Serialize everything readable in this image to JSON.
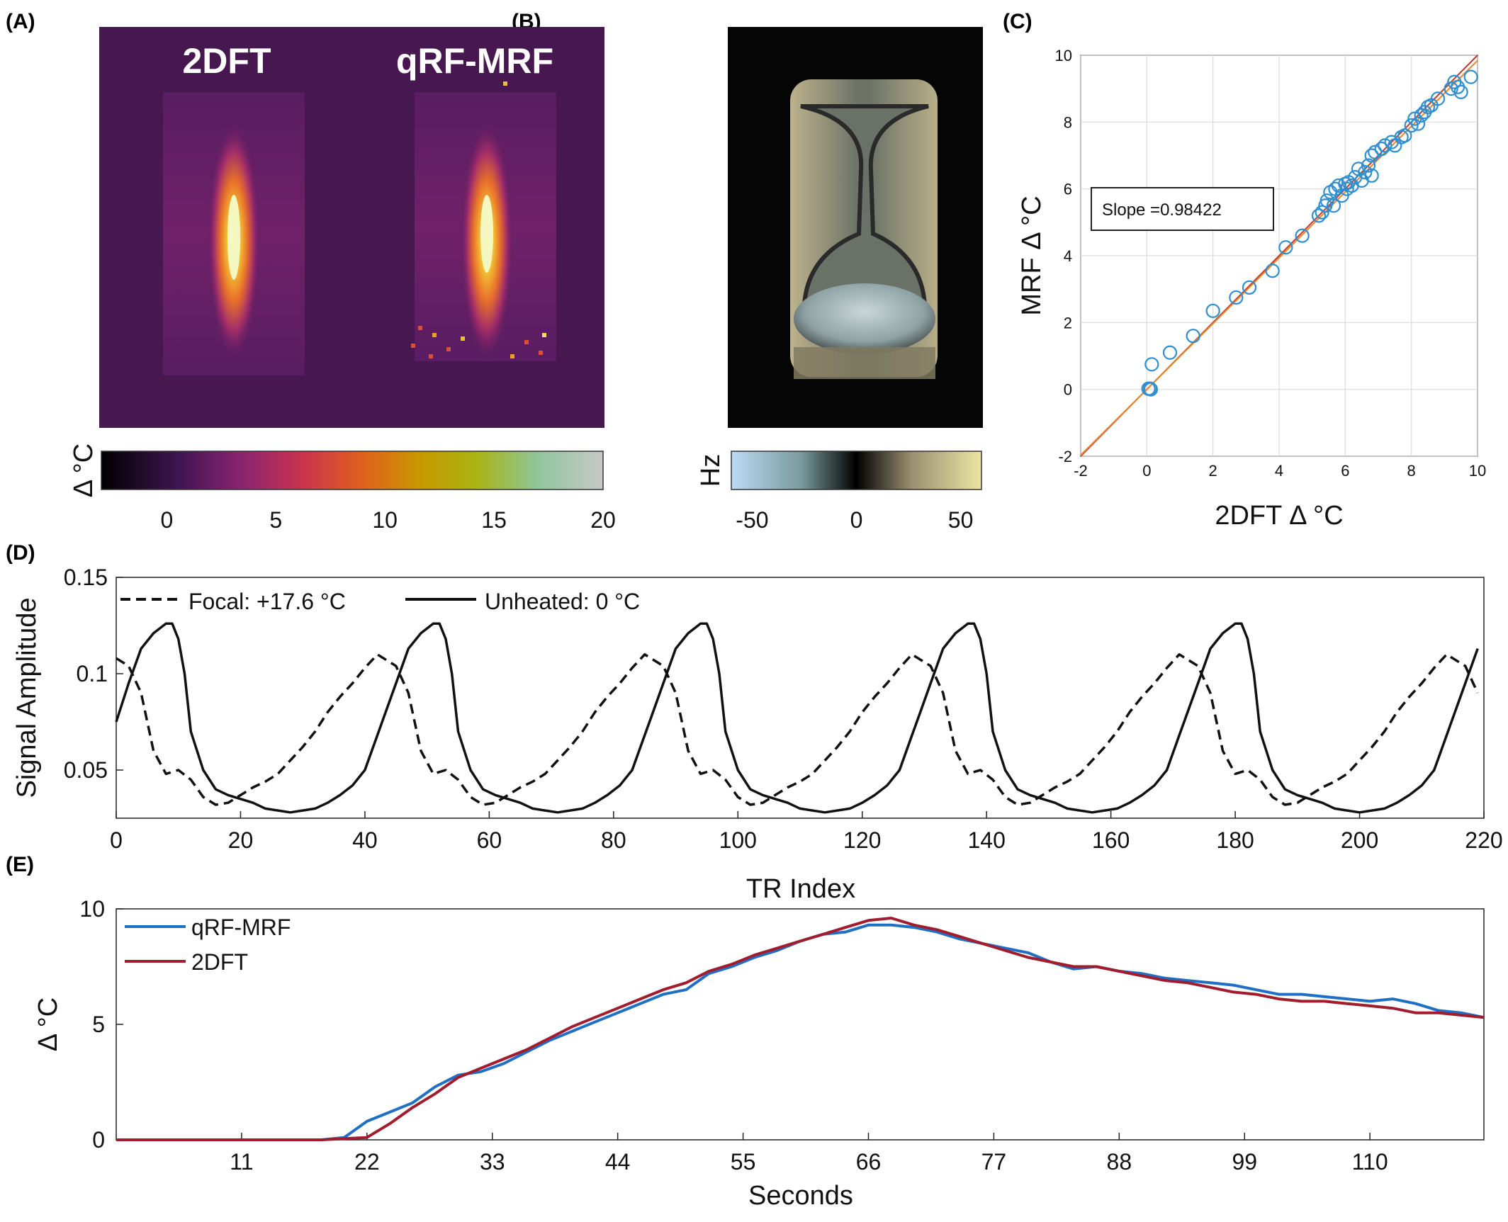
{
  "panels": {
    "A": {
      "label": "(A)",
      "image_titles": [
        "2DFT",
        "qRF-MRF"
      ],
      "colorbar": {
        "label": "Δ °C",
        "ticks": [
          "0",
          "5",
          "10",
          "15",
          "20"
        ],
        "range": [
          -3,
          20
        ]
      }
    },
    "B": {
      "label": "(B)",
      "colorbar": {
        "label": "Hz",
        "ticks": [
          "-50",
          "0",
          "50"
        ],
        "range": [
          -60,
          60
        ]
      }
    },
    "C": {
      "label": "(C)"
    },
    "D": {
      "label": "(D)"
    },
    "E": {
      "label": "(E)"
    }
  },
  "colors": {
    "scatter_marker": "#2f8fd0",
    "fit_line_orange": "#e8862a",
    "fit_line_red": "#c0392b",
    "qrf_line": "#1f6fc5",
    "twodft_line": "#a11d2e",
    "map_background": "#46184f"
  },
  "chart_data": [
    {
      "id": "C",
      "type": "scatter",
      "xlabel": "2DFT Δ °C",
      "ylabel": "MRF Δ °C",
      "xlim": [
        -2,
        10
      ],
      "ylim": [
        -2,
        10
      ],
      "xticks": [
        "-2",
        "0",
        "2",
        "4",
        "6",
        "8",
        "10"
      ],
      "yticks": [
        "-2",
        "0",
        "2",
        "4",
        "6",
        "8",
        "10"
      ],
      "grid": true,
      "annotation": "Slope =0.98422",
      "fit_slope": 0.98422,
      "points": [
        [
          0.05,
          0.02
        ],
        [
          0.1,
          0.02
        ],
        [
          0.12,
          0.0
        ],
        [
          0.15,
          0.75
        ],
        [
          0.7,
          1.1
        ],
        [
          1.4,
          1.6
        ],
        [
          2.0,
          2.35
        ],
        [
          2.7,
          2.75
        ],
        [
          3.1,
          3.05
        ],
        [
          3.8,
          3.55
        ],
        [
          4.2,
          4.25
        ],
        [
          4.7,
          4.6
        ],
        [
          5.2,
          5.2
        ],
        [
          5.3,
          5.3
        ],
        [
          5.4,
          5.5
        ],
        [
          5.45,
          5.65
        ],
        [
          5.55,
          5.9
        ],
        [
          5.65,
          5.5
        ],
        [
          5.7,
          6.0
        ],
        [
          5.8,
          6.1
        ],
        [
          5.9,
          5.8
        ],
        [
          6.0,
          6.15
        ],
        [
          6.05,
          6.0
        ],
        [
          6.1,
          6.2
        ],
        [
          6.2,
          6.1
        ],
        [
          6.3,
          6.35
        ],
        [
          6.4,
          6.6
        ],
        [
          6.5,
          6.25
        ],
        [
          6.6,
          6.5
        ],
        [
          6.7,
          6.7
        ],
        [
          6.8,
          6.4
        ],
        [
          6.8,
          7.0
        ],
        [
          6.9,
          7.1
        ],
        [
          7.1,
          7.2
        ],
        [
          7.2,
          7.3
        ],
        [
          7.4,
          7.4
        ],
        [
          7.5,
          7.3
        ],
        [
          7.7,
          7.55
        ],
        [
          7.8,
          7.6
        ],
        [
          8.0,
          7.9
        ],
        [
          8.1,
          8.1
        ],
        [
          8.2,
          7.95
        ],
        [
          8.3,
          8.2
        ],
        [
          8.4,
          8.3
        ],
        [
          8.5,
          8.45
        ],
        [
          8.6,
          8.5
        ],
        [
          8.8,
          8.7
        ],
        [
          9.2,
          9.0
        ],
        [
          9.3,
          9.2
        ],
        [
          9.4,
          9.05
        ],
        [
          9.5,
          8.9
        ],
        [
          9.8,
          9.35
        ]
      ]
    },
    {
      "id": "D",
      "type": "line",
      "xlabel": "TR Index",
      "ylabel": "Signal Amplitude",
      "xlim": [
        0,
        220
      ],
      "ylim": [
        0.025,
        0.15
      ],
      "xticks": [
        "0",
        "20",
        "40",
        "60",
        "80",
        "100",
        "120",
        "140",
        "160",
        "180",
        "200",
        "220"
      ],
      "yticks": [
        "0.05",
        "0.1",
        "0.15"
      ],
      "legend_position": "top-left",
      "series": [
        {
          "name": "Focal: +17.6 °C",
          "style": "dashed",
          "period": 43,
          "cycle_x": [
            0,
            2,
            4,
            6,
            8,
            10,
            12,
            14,
            16,
            18,
            20,
            22,
            24,
            26,
            28,
            30,
            32,
            34,
            36,
            38,
            40,
            42,
            43
          ],
          "cycle_y": [
            0.108,
            0.104,
            0.09,
            0.06,
            0.048,
            0.05,
            0.045,
            0.036,
            0.032,
            0.033,
            0.037,
            0.041,
            0.044,
            0.048,
            0.055,
            0.062,
            0.07,
            0.08,
            0.088,
            0.095,
            0.103,
            0.11,
            0.108
          ]
        },
        {
          "name": "Unheated: 0 °C",
          "style": "solid",
          "period": 43,
          "cycle_x": [
            0,
            2,
            4,
            6,
            8,
            9,
            10,
            11,
            12,
            14,
            16,
            18,
            20,
            22,
            24,
            26,
            28,
            30,
            32,
            34,
            36,
            38,
            40,
            42,
            43
          ],
          "cycle_y": [
            0.075,
            0.095,
            0.113,
            0.121,
            0.126,
            0.126,
            0.118,
            0.1,
            0.07,
            0.05,
            0.04,
            0.037,
            0.035,
            0.033,
            0.03,
            0.029,
            0.028,
            0.029,
            0.03,
            0.033,
            0.037,
            0.042,
            0.05,
            0.068,
            0.077
          ]
        }
      ]
    },
    {
      "id": "E",
      "type": "line",
      "xlabel": "Seconds",
      "ylabel": "Δ °C",
      "xlim": [
        0,
        120
      ],
      "ylim": [
        0,
        10
      ],
      "xticks": [
        "11",
        "22",
        "33",
        "44",
        "55",
        "66",
        "77",
        "88",
        "99",
        "110"
      ],
      "yticks": [
        "0",
        "5",
        "10"
      ],
      "legend_position": "top-left",
      "series": [
        {
          "name": "qRF-MRF",
          "x": [
            0,
            18,
            20,
            22,
            24,
            26,
            28,
            30,
            32,
            34,
            36,
            38,
            40,
            42,
            44,
            46,
            48,
            50,
            52,
            54,
            56,
            58,
            60,
            62,
            64,
            66,
            68,
            70,
            72,
            74,
            76,
            78,
            80,
            82,
            84,
            86,
            88,
            90,
            92,
            94,
            96,
            98,
            100,
            102,
            104,
            106,
            108,
            110,
            112,
            114,
            116,
            118,
            120
          ],
          "y": [
            0,
            0,
            0.1,
            0.8,
            1.2,
            1.6,
            2.3,
            2.8,
            2.95,
            3.3,
            3.8,
            4.3,
            4.7,
            5.1,
            5.5,
            5.9,
            6.3,
            6.5,
            7.2,
            7.5,
            7.9,
            8.2,
            8.6,
            8.9,
            9.0,
            9.3,
            9.3,
            9.2,
            9.0,
            8.7,
            8.5,
            8.3,
            8.1,
            7.7,
            7.4,
            7.5,
            7.3,
            7.2,
            7.0,
            6.9,
            6.8,
            6.7,
            6.5,
            6.3,
            6.3,
            6.2,
            6.1,
            6.0,
            6.1,
            5.9,
            5.6,
            5.5,
            5.3
          ]
        },
        {
          "name": "2DFT",
          "x": [
            0,
            18,
            20,
            22,
            24,
            26,
            28,
            30,
            32,
            34,
            36,
            38,
            40,
            42,
            44,
            46,
            48,
            50,
            52,
            54,
            56,
            58,
            60,
            62,
            64,
            66,
            68,
            70,
            72,
            74,
            76,
            78,
            80,
            82,
            84,
            86,
            88,
            90,
            92,
            94,
            96,
            98,
            100,
            102,
            104,
            106,
            108,
            110,
            112,
            114,
            116,
            118,
            120
          ],
          "y": [
            0,
            0,
            0.05,
            0.1,
            0.7,
            1.4,
            2.0,
            2.7,
            3.1,
            3.5,
            3.9,
            4.4,
            4.9,
            5.3,
            5.7,
            6.1,
            6.5,
            6.8,
            7.3,
            7.6,
            8.0,
            8.3,
            8.6,
            8.9,
            9.2,
            9.5,
            9.6,
            9.3,
            9.1,
            8.8,
            8.5,
            8.2,
            7.9,
            7.7,
            7.5,
            7.5,
            7.3,
            7.1,
            6.9,
            6.8,
            6.6,
            6.4,
            6.3,
            6.1,
            6.0,
            6.0,
            5.9,
            5.8,
            5.7,
            5.5,
            5.5,
            5.4,
            5.3
          ]
        }
      ]
    }
  ]
}
